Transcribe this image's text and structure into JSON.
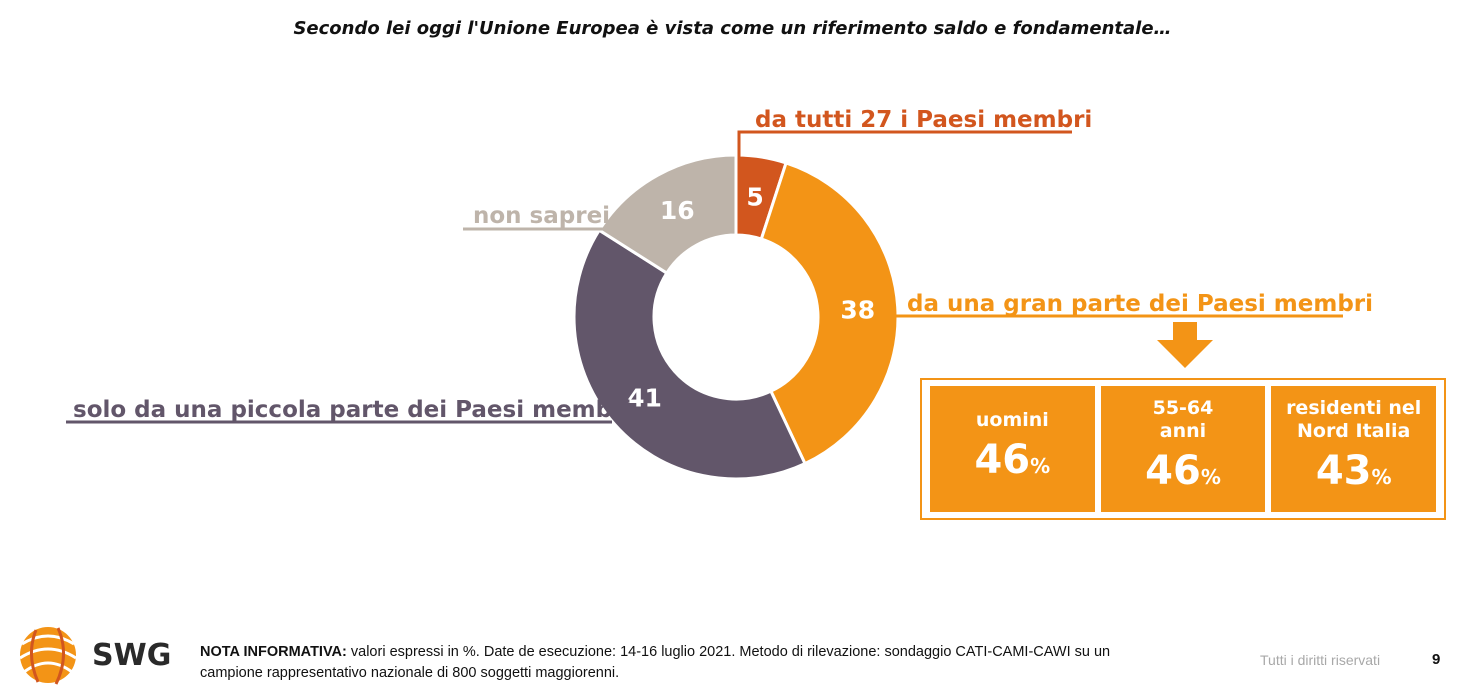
{
  "title": "Secondo lei oggi l'Unione Europea è vista come un riferimento saldo e fondamentale…",
  "chart_data": {
    "type": "pie",
    "donut": true,
    "unit": "%",
    "slices": [
      {
        "label": "da tutti 27 i Paesi membri",
        "value": 5,
        "color": "#D2561E",
        "label_color": "#D2561E"
      },
      {
        "label": "da una gran parte dei Paesi membri",
        "value": 38,
        "color": "#F39416",
        "label_color": "#F39416"
      },
      {
        "label": "solo da una piccola parte dei Paesi membri",
        "value": 41,
        "color": "#62566A",
        "label_color": "#62566A"
      },
      {
        "label": "non saprei",
        "value": 16,
        "color": "#BEB4AA",
        "label_color": "#BEB4AA"
      }
    ]
  },
  "breakdown": [
    {
      "label": "uomini",
      "value": "46",
      "unit": "%"
    },
    {
      "label": "55-64\nanni",
      "value": "46",
      "unit": "%"
    },
    {
      "label": "residenti nel\nNord Italia",
      "value": "43",
      "unit": "%"
    }
  ],
  "colors": {
    "accent": "#F39416"
  },
  "footer": {
    "brand": "SWG",
    "note_bold": "NOTA INFORMATIVA:",
    "note_text": " valori espressi in %. Date de esecuzione: 14-16 luglio 2021. Metodo di rilevazione: sondaggio CATI-CAMI-CAWI su un campione rappresentativo nazionale di 800 soggetti maggiorenni.",
    "rights": "Tutti i diritti riservati",
    "page": "9"
  }
}
